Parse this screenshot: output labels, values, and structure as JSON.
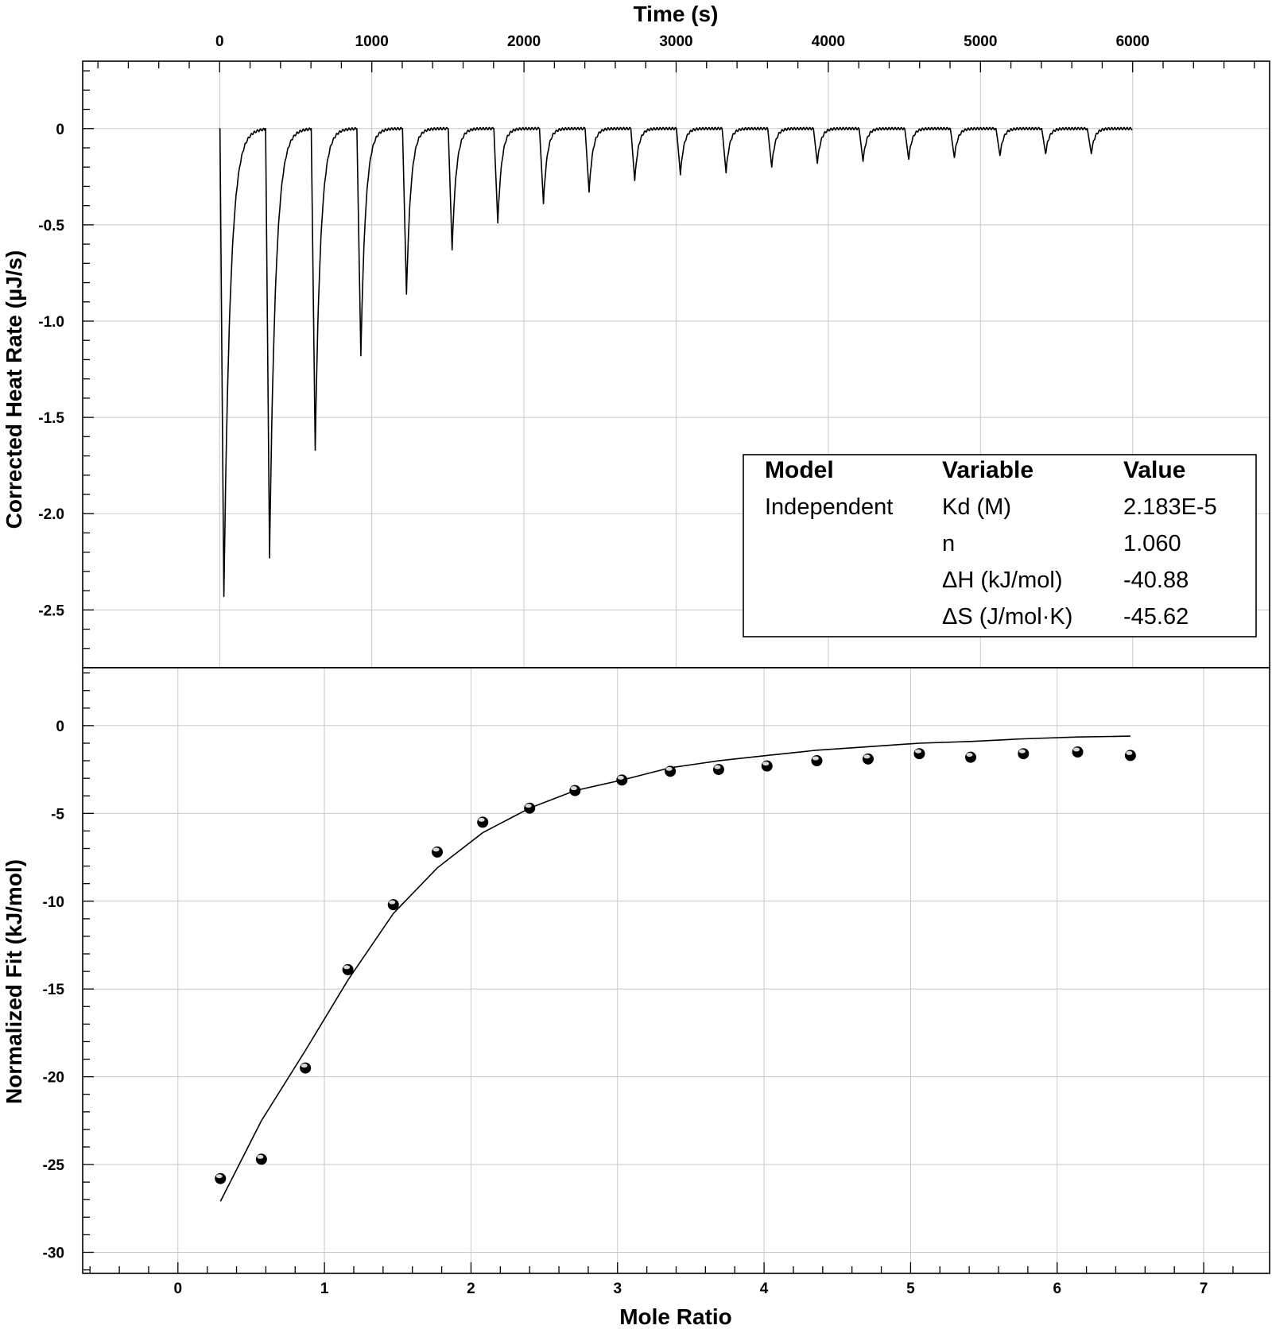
{
  "chart_data": [
    {
      "type": "line",
      "panel": "top",
      "xlabel": "Time (s)",
      "ylabel": "Corrected Heat Rate (µJ/s)",
      "x_axis_position": "top",
      "xlim": [
        -900,
        6900
      ],
      "ylim": [
        -2.8,
        0.35
      ],
      "x_ticks": [
        0,
        1000,
        2000,
        3000,
        4000,
        5000,
        6000
      ],
      "x_tick_labels": [
        "0",
        "1000",
        "2000",
        "3000",
        "4000",
        "5000",
        "6000"
      ],
      "y_ticks": [
        0,
        -0.5,
        -1.0,
        -1.5,
        -2.0,
        -2.5
      ],
      "y_tick_labels": [
        "0",
        "-0.5",
        "-1.0",
        "-1.5",
        "-2.0",
        "-2.5"
      ],
      "grid": true,
      "baseline": 0,
      "injections": {
        "time": [
          0,
          300,
          600,
          900,
          1200,
          1500,
          1800,
          2100,
          2400,
          2700,
          3000,
          3300,
          3600,
          3900,
          4200,
          4500,
          4800,
          5100,
          5400,
          5700
        ],
        "peak_heat_rate": [
          -2.43,
          -2.23,
          -1.67,
          -1.18,
          -0.86,
          -0.63,
          -0.49,
          -0.39,
          -0.33,
          -0.27,
          -0.24,
          -0.23,
          -0.2,
          -0.18,
          -0.17,
          -0.16,
          -0.15,
          -0.14,
          -0.13,
          -0.13
        ]
      },
      "trace_end_time": 6000,
      "legend": {
        "placement": "bottom-right",
        "headers": [
          "Model",
          "Variable",
          "Value"
        ],
        "rows": [
          [
            "Independent",
            "Kd (M)",
            "2.183E-5"
          ],
          [
            "",
            "n",
            "1.060"
          ],
          [
            "",
            "ΔH (kJ/mol)",
            "-40.88"
          ],
          [
            "",
            "ΔS (J/mol·K)",
            "-45.62"
          ]
        ]
      }
    },
    {
      "type": "scatter",
      "panel": "bottom",
      "xlabel": "Mole Ratio",
      "ylabel": "Normalized Fit (kJ/mol)",
      "x_axis_position": "bottom",
      "xlim": [
        -0.65,
        7.45
      ],
      "ylim": [
        -31.2,
        3.3
      ],
      "x_ticks": [
        0,
        1,
        2,
        3,
        4,
        5,
        6,
        7
      ],
      "x_tick_labels": [
        "0",
        "1",
        "2",
        "3",
        "4",
        "5",
        "6",
        "7"
      ],
      "y_ticks": [
        0,
        -5,
        -10,
        -15,
        -20,
        -25,
        -30
      ],
      "y_tick_labels": [
        "0",
        "-5",
        "-10",
        "-15",
        "-20",
        "-25",
        "-30"
      ],
      "grid": true,
      "points": {
        "x": [
          0.29,
          0.57,
          0.87,
          1.16,
          1.47,
          1.77,
          2.08,
          2.4,
          2.71,
          3.03,
          3.36,
          3.69,
          4.02,
          4.36,
          4.71,
          5.06,
          5.41,
          5.77,
          6.14,
          6.5
        ],
        "y": [
          -25.8,
          -24.7,
          -19.5,
          -13.9,
          -10.2,
          -7.2,
          -5.5,
          -4.7,
          -3.7,
          -3.1,
          -2.6,
          -2.5,
          -2.3,
          -2.0,
          -1.9,
          -1.6,
          -1.8,
          -1.6,
          -1.5,
          -1.7
        ]
      },
      "fit": {
        "x": [
          0.29,
          0.57,
          0.87,
          1.16,
          1.47,
          1.77,
          2.08,
          2.4,
          2.71,
          3.03,
          3.36,
          3.69,
          4.02,
          4.36,
          4.71,
          5.06,
          5.41,
          5.77,
          6.14,
          6.5
        ],
        "y": [
          -27.1,
          -22.5,
          -18.5,
          -14.5,
          -10.7,
          -8.1,
          -6.1,
          -4.7,
          -3.7,
          -3.1,
          -2.4,
          -2.0,
          -1.7,
          -1.4,
          -1.2,
          -1.0,
          -0.9,
          -0.75,
          -0.65,
          -0.6
        ]
      }
    }
  ]
}
